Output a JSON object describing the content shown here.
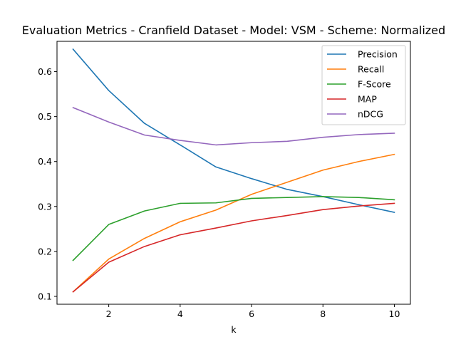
{
  "chart_data": {
    "type": "line",
    "title": "Evaluation Metrics - Cranfield Dataset - Model: VSM - Scheme: Normalized",
    "xlabel": "k",
    "ylabel": "",
    "x": [
      1,
      2,
      3,
      4,
      5,
      6,
      7,
      8,
      9,
      10
    ],
    "xlim": [
      0.55,
      10.45
    ],
    "ylim": [
      0.0825,
      0.6675
    ],
    "xticks": [
      2,
      4,
      6,
      8,
      10
    ],
    "yticks": [
      0.1,
      0.2,
      0.3,
      0.4,
      0.5,
      0.6
    ],
    "ytick_labels": [
      "0.1",
      "0.2",
      "0.3",
      "0.4",
      "0.5",
      "0.6"
    ],
    "grid": false,
    "legend_position": "top-right",
    "series": [
      {
        "name": "Precision",
        "color": "#1f77b4",
        "values": [
          0.65,
          0.558,
          0.485,
          0.437,
          0.388,
          0.362,
          0.338,
          0.322,
          0.304,
          0.287
        ]
      },
      {
        "name": "Recall",
        "color": "#ff7f0e",
        "values": [
          0.11,
          0.183,
          0.229,
          0.266,
          0.292,
          0.327,
          0.354,
          0.381,
          0.4,
          0.416
        ]
      },
      {
        "name": "F-Score",
        "color": "#2ca02c",
        "values": [
          0.18,
          0.26,
          0.29,
          0.307,
          0.308,
          0.318,
          0.32,
          0.322,
          0.32,
          0.315
        ]
      },
      {
        "name": "MAP",
        "color": "#d62728",
        "values": [
          0.11,
          0.176,
          0.211,
          0.237,
          0.252,
          0.268,
          0.28,
          0.293,
          0.301,
          0.307
        ]
      },
      {
        "name": "nDCG",
        "color": "#9467bd",
        "values": [
          0.52,
          0.488,
          0.459,
          0.447,
          0.437,
          0.442,
          0.445,
          0.454,
          0.46,
          0.463
        ]
      }
    ]
  }
}
